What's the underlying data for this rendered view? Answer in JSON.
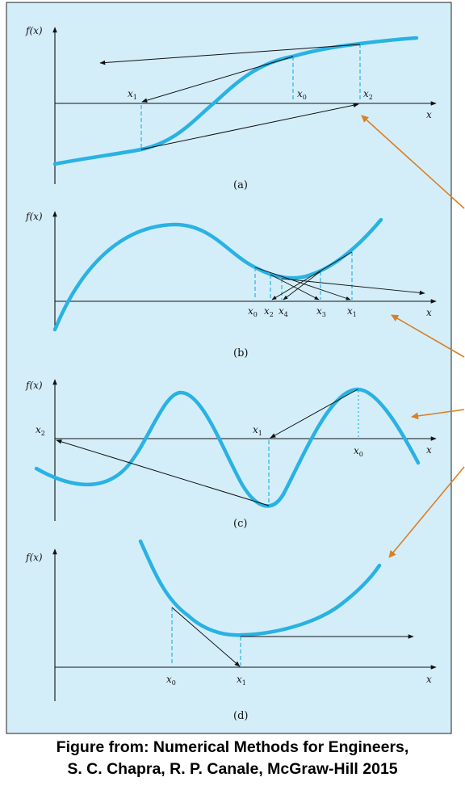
{
  "panels": [
    {
      "id": "a",
      "panel_label": "(a)",
      "y_axis": "f(x)",
      "x_axis": "x",
      "point_labels": [
        {
          "base": "x",
          "sub": "1"
        },
        {
          "base": "x",
          "sub": "0"
        },
        {
          "base": "x",
          "sub": "2"
        }
      ]
    },
    {
      "id": "b",
      "panel_label": "(b)",
      "y_axis": "f(x)",
      "x_axis": "x",
      "point_labels": [
        {
          "base": "x",
          "sub": "0"
        },
        {
          "base": "x",
          "sub": "2"
        },
        {
          "base": "x",
          "sub": "4"
        },
        {
          "base": "x",
          "sub": "3"
        },
        {
          "base": "x",
          "sub": "1"
        }
      ]
    },
    {
      "id": "c",
      "panel_label": "(c)",
      "y_axis": "f(x)",
      "x_axis": "x",
      "point_labels": [
        {
          "base": "x",
          "sub": "2"
        },
        {
          "base": "x",
          "sub": "1"
        },
        {
          "base": "x",
          "sub": "0"
        }
      ]
    },
    {
      "id": "d",
      "panel_label": "(d)",
      "y_axis": "f(x)",
      "x_axis": "x",
      "point_labels": [
        {
          "base": "x",
          "sub": "0"
        },
        {
          "base": "x",
          "sub": "1"
        }
      ]
    }
  ],
  "caption": {
    "line1": "Figure from: Numerical Methods for Engineers,",
    "line2": "S. C. Chapra, R. P. Canale, McGraw-Hill 2015"
  },
  "colors": {
    "background": "#d4eef9",
    "curve": "#29b2e3",
    "axis": "#111111",
    "pointer_arrow": "#d98027"
  }
}
